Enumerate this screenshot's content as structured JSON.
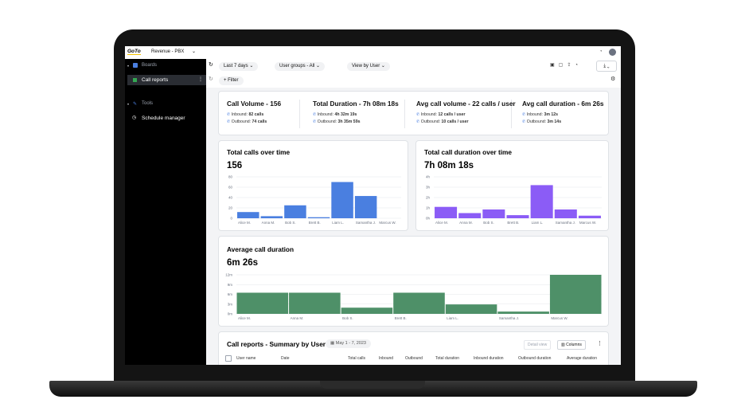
{
  "topbar": {
    "logo": "GoTo",
    "workspace": "Revenue - PBX"
  },
  "sidebar": {
    "section1": "Boards",
    "item1": "Call reports",
    "section2": "Tools",
    "item2": "Schedule manager"
  },
  "toolbar": {
    "range": "Last 7 days",
    "groups": "User groups - All",
    "view": "View by User",
    "filter": "Filter"
  },
  "kpis": [
    {
      "title": "Call Volume - 156",
      "inbound_label": "Inbound:",
      "inbound": "82 calls",
      "outbound_label": "Outbound:",
      "outbound": "74 calls"
    },
    {
      "title": "Total Duration - 7h 08m 18s",
      "inbound_label": "Inbound:",
      "inbound": "4h 32m 19s",
      "outbound_label": "Outbound:",
      "outbound": "3h 35m 59s"
    },
    {
      "title": "Avg call volume - 22 calls / user",
      "inbound_label": "Inbound:",
      "inbound": "12 calls / user",
      "outbound_label": "Outbound:",
      "outbound": "10 calls / user"
    },
    {
      "title": "Avg call duration - 6m 26s",
      "inbound_label": "Inbound:",
      "inbound": "3m 12s",
      "outbound_label": "Outbound:",
      "outbound": "3m 14s"
    }
  ],
  "chart_data": [
    {
      "type": "bar",
      "title": "Total calls over time",
      "subtitle": "156",
      "categories": [
        "Alice M.",
        "Anna M.",
        "Bob S.",
        "Brett B.",
        "Liam L.",
        "Samantha J.",
        "Marcus W."
      ],
      "values": [
        12,
        4,
        25,
        2,
        70,
        43,
        0
      ],
      "color": "#4a7fe0",
      "ylim": [
        0,
        80
      ],
      "yticks": [
        0,
        20,
        40,
        60,
        80
      ],
      "grid": true
    },
    {
      "type": "bar",
      "title": "Total call duration over time",
      "subtitle": "7h 08m 18s",
      "categories": [
        "Alice M.",
        "Anna M.",
        "Bob S.",
        "Brett B.",
        "Liam L.",
        "Samantha J.",
        "Marcus W."
      ],
      "values": [
        1.1,
        0.5,
        0.85,
        0.3,
        3.2,
        0.85,
        0.25
      ],
      "color": "#8b5cf6",
      "ylim": [
        0,
        4
      ],
      "yticks": [
        {
          "value": 0,
          "label": "0h"
        },
        {
          "value": 1,
          "label": "1h"
        },
        {
          "value": 2,
          "label": "2h"
        },
        {
          "value": 3,
          "label": "3h"
        },
        {
          "value": 4,
          "label": "4h"
        }
      ],
      "grid": true
    },
    {
      "type": "bar",
      "title": "Average call duration",
      "subtitle": "6m 26s",
      "categories": [
        "Alice M.",
        "Anna M.",
        "Bob S.",
        "Brett B.",
        "Liam L.",
        "Samantha J.",
        "Marcus W."
      ],
      "values": [
        6.5,
        6.5,
        1.9,
        6.5,
        2.9,
        0.7,
        12
      ],
      "color": "#4e9068",
      "ylim": [
        0,
        12
      ],
      "yticks": [
        {
          "value": 0,
          "label": "0m"
        },
        {
          "value": 3,
          "label": "3m"
        },
        {
          "value": 6,
          "label": "6m"
        },
        {
          "value": 9,
          "label": "9m"
        },
        {
          "value": 12,
          "label": "12m"
        }
      ],
      "grid": true
    }
  ],
  "table": {
    "title": "Call reports - Summary by User",
    "date": "May 1 - 7, 2023",
    "detail": "Detail view",
    "columns_button": "Columns",
    "columns": [
      "User name",
      "Date",
      "Total calls",
      "Inbound",
      "Outbound",
      "Total duration",
      "Inbound duration",
      "Outbound duration",
      "Average duration"
    ]
  }
}
